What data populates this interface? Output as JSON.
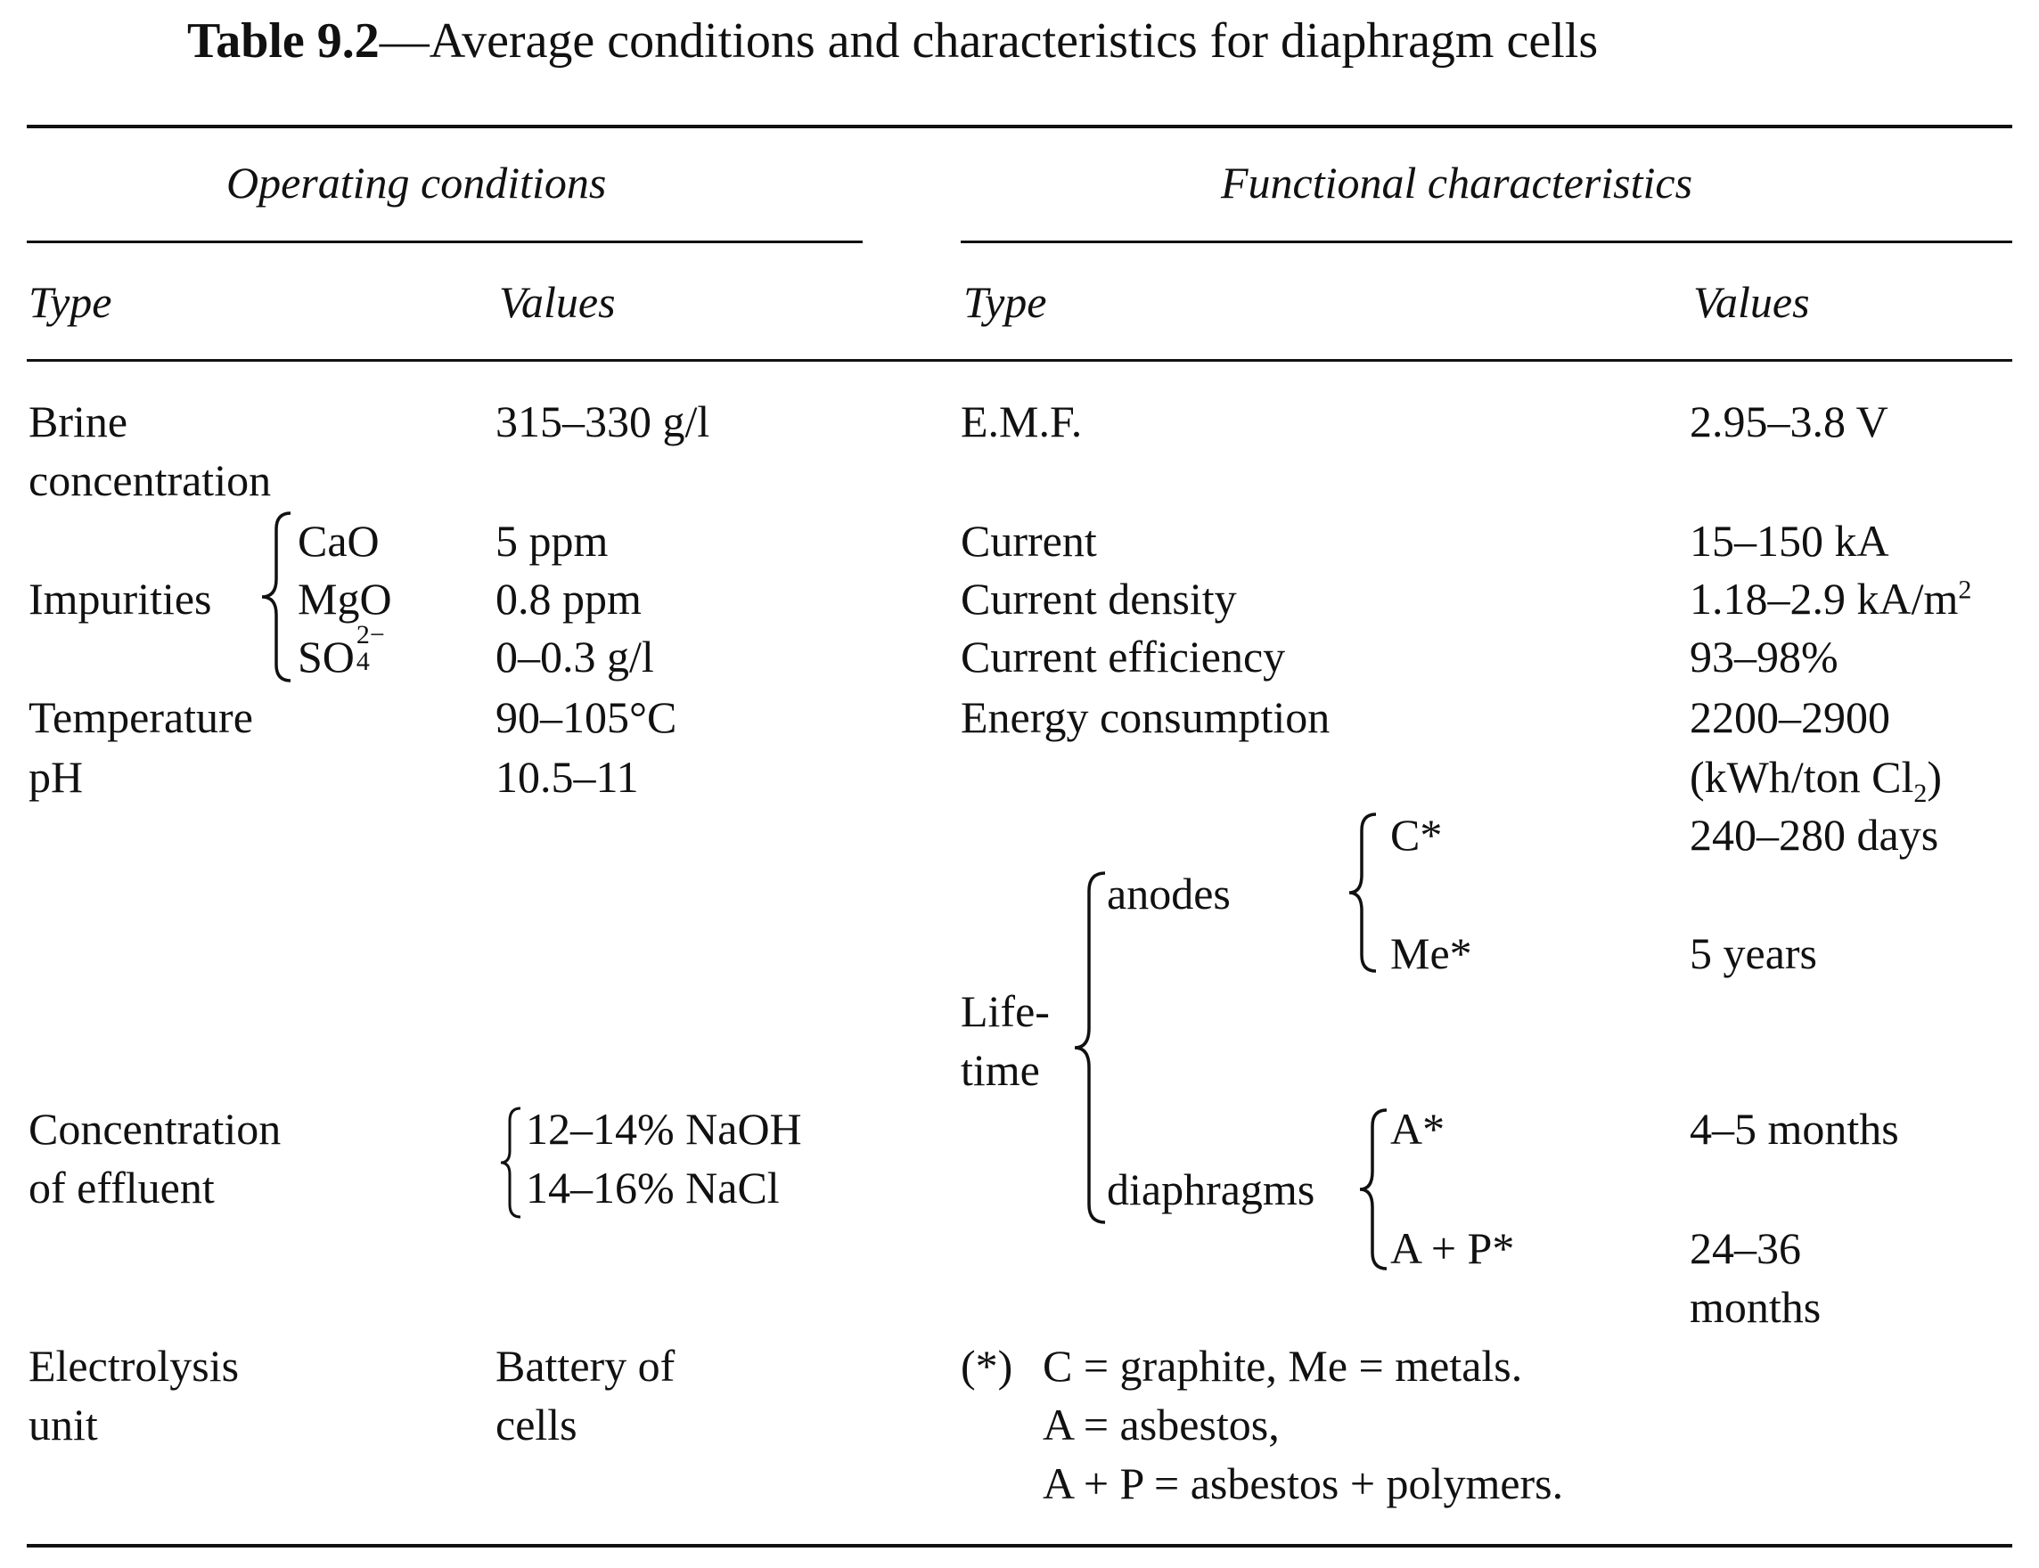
{
  "title": {
    "label": "Table 9.2",
    "dash": "—",
    "text": "Average conditions and characteristics for diaphragm cells"
  },
  "headers": {
    "operating": "Operating conditions",
    "functional": "Functional characteristics",
    "type_left": "Type",
    "values_left": "Values",
    "type_right": "Type",
    "values_right": "Values"
  },
  "operating_rows": {
    "brine_1": "Brine",
    "brine_2": "concentration",
    "brine_value": "315–330 g/l",
    "impurities": "Impurities",
    "cao": "CaO",
    "cao_value": "5 ppm",
    "mgo": "MgO",
    "mgo_value": "0.8 ppm",
    "so4_base": "SO",
    "so4_sub": "4",
    "so4_sup": "2−",
    "so4_value": "0–0.3 g/l",
    "temperature": "Temperature",
    "temperature_value": "90–105°C",
    "ph": "pH",
    "ph_value": "10.5–11",
    "effluent_1": "Concentration",
    "effluent_2": "of effluent",
    "effluent_value_1": "12–14% NaOH",
    "effluent_value_2": "14–16% NaCl",
    "electrolysis_1": "Electrolysis",
    "electrolysis_2": "unit",
    "electrolysis_value_1": "Battery of",
    "electrolysis_value_2": "cells"
  },
  "functional_rows": {
    "emf": "E.M.F.",
    "emf_value": "2.95–3.8 V",
    "current": "Current",
    "current_value": "15–150 kA",
    "current_density": "Current density",
    "current_density_value": "1.18–2.9 kA/m",
    "current_density_sup": "2",
    "current_efficiency": "Current efficiency",
    "current_efficiency_value": "93–98%",
    "energy": "Energy consumption",
    "energy_value_1": "2200–2900",
    "energy_value_2": "(kWh/ton Cl",
    "energy_value_sub": "2",
    "energy_value_close": ")",
    "lifetime_1": "Life-",
    "lifetime_2": "time",
    "anodes": "anodes",
    "c_star": "C*",
    "c_star_value": "240–280 days",
    "me_star": "Me*",
    "me_star_value": "5 years",
    "diaphragms": "diaphragms",
    "a_star": "A*",
    "a_star_value": "4–5 months",
    "ap_star": "A + P*",
    "ap_star_value_1": "24–36",
    "ap_star_value_2": "months"
  },
  "footnote": {
    "marker": "(*)",
    "line1": "C = graphite, Me = metals.",
    "line2": "A = asbestos,",
    "line3": "A + P = asbestos + polymers."
  }
}
